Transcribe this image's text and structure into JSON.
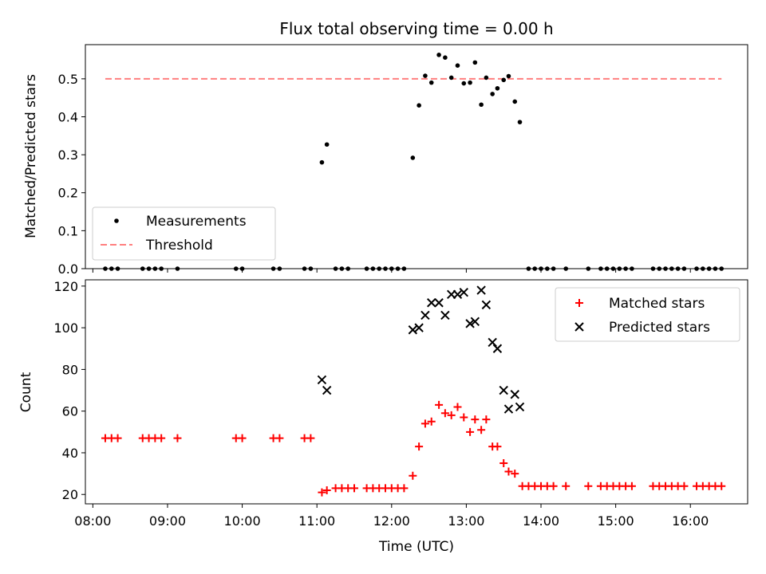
{
  "title": "Flux total observing time = 0.00 h",
  "chart_data": [
    {
      "type": "scatter",
      "title": "Flux total observing time = 0.00 h",
      "xlabel": "",
      "ylabel": "Matched/Predicted stars",
      "xlim": [
        "07:54",
        "16:46"
      ],
      "ylim": [
        0,
        0.59
      ],
      "yticks": [
        "0.0",
        "0.1",
        "0.2",
        "0.3",
        "0.4",
        "0.5"
      ],
      "legend": {
        "placement": "lower-left",
        "entries": [
          "Measurements",
          "Threshold"
        ]
      },
      "series": [
        {
          "name": "Measurements",
          "marker": "dot",
          "color": "#000000",
          "points": [
            [
              "08:10",
              0
            ],
            [
              "08:15",
              0
            ],
            [
              "08:20",
              0
            ],
            [
              "08:40",
              0
            ],
            [
              "08:45",
              0
            ],
            [
              "08:50",
              0
            ],
            [
              "08:55",
              0
            ],
            [
              "09:08",
              0
            ],
            [
              "09:55",
              0
            ],
            [
              "10:00",
              0
            ],
            [
              "10:25",
              0
            ],
            [
              "10:30",
              0
            ],
            [
              "10:50",
              0
            ],
            [
              "10:55",
              0
            ],
            [
              "11:04",
              0.28
            ],
            [
              "11:08",
              0.327
            ],
            [
              "11:15",
              0
            ],
            [
              "11:20",
              0
            ],
            [
              "11:25",
              0
            ],
            [
              "11:40",
              0
            ],
            [
              "11:45",
              0
            ],
            [
              "11:50",
              0
            ],
            [
              "11:55",
              0
            ],
            [
              "12:00",
              0
            ],
            [
              "12:05",
              0
            ],
            [
              "12:10",
              0
            ],
            [
              "12:17",
              0.292
            ],
            [
              "12:22",
              0.43
            ],
            [
              "12:27",
              0.508
            ],
            [
              "12:32",
              0.49
            ],
            [
              "12:38",
              0.563
            ],
            [
              "12:43",
              0.556
            ],
            [
              "12:48",
              0.503
            ],
            [
              "12:53",
              0.535
            ],
            [
              "12:58",
              0.488
            ],
            [
              "13:03",
              0.49
            ],
            [
              "13:07",
              0.543
            ],
            [
              "13:12",
              0.432
            ],
            [
              "13:16",
              0.503
            ],
            [
              "13:21",
              0.46
            ],
            [
              "13:25",
              0.475
            ],
            [
              "13:30",
              0.497
            ],
            [
              "13:34",
              0.507
            ],
            [
              "13:39",
              0.44
            ],
            [
              "13:43",
              0.386
            ],
            [
              "13:50",
              0
            ],
            [
              "13:55",
              0
            ],
            [
              "14:00",
              0
            ],
            [
              "14:05",
              0
            ],
            [
              "14:10",
              0
            ],
            [
              "14:20",
              0
            ],
            [
              "14:38",
              0
            ],
            [
              "14:48",
              0
            ],
            [
              "14:53",
              0
            ],
            [
              "14:58",
              0
            ],
            [
              "15:03",
              0
            ],
            [
              "15:08",
              0
            ],
            [
              "15:13",
              0
            ],
            [
              "15:30",
              0
            ],
            [
              "15:35",
              0
            ],
            [
              "15:40",
              0
            ],
            [
              "15:45",
              0
            ],
            [
              "15:50",
              0
            ],
            [
              "15:55",
              0
            ],
            [
              "16:05",
              0
            ],
            [
              "16:10",
              0
            ],
            [
              "16:15",
              0
            ],
            [
              "16:20",
              0
            ],
            [
              "16:25",
              0
            ]
          ]
        },
        {
          "name": "Threshold",
          "line": "dashed",
          "color": "#ff7f7f",
          "points": [
            [
              "08:10",
              0.5
            ],
            [
              "16:25",
              0.5
            ]
          ]
        }
      ]
    },
    {
      "type": "scatter",
      "title": "",
      "xlabel": "Time (UTC)",
      "ylabel": "Count",
      "xlim": [
        "07:54",
        "16:46"
      ],
      "ylim": [
        15.5,
        123
      ],
      "xticks": [
        "08:00",
        "09:00",
        "10:00",
        "11:00",
        "12:00",
        "13:00",
        "14:00",
        "15:00",
        "16:00"
      ],
      "yticks": [
        "20",
        "40",
        "60",
        "80",
        "100",
        "120"
      ],
      "legend": {
        "placement": "top-right",
        "entries": [
          "Matched stars",
          "Predicted stars"
        ]
      },
      "series": [
        {
          "name": "Matched stars",
          "marker": "plus",
          "color": "#ff0000",
          "points": [
            [
              "08:10",
              47
            ],
            [
              "08:15",
              47
            ],
            [
              "08:20",
              47
            ],
            [
              "08:40",
              47
            ],
            [
              "08:45",
              47
            ],
            [
              "08:50",
              47
            ],
            [
              "08:55",
              47
            ],
            [
              "09:08",
              47
            ],
            [
              "09:55",
              47
            ],
            [
              "10:00",
              47
            ],
            [
              "10:25",
              47
            ],
            [
              "10:30",
              47
            ],
            [
              "10:50",
              47
            ],
            [
              "10:55",
              47
            ],
            [
              "11:04",
              21
            ],
            [
              "11:08",
              22
            ],
            [
              "11:15",
              23
            ],
            [
              "11:20",
              23
            ],
            [
              "11:25",
              23
            ],
            [
              "11:30",
              23
            ],
            [
              "11:40",
              23
            ],
            [
              "11:45",
              23
            ],
            [
              "11:50",
              23
            ],
            [
              "11:55",
              23
            ],
            [
              "12:00",
              23
            ],
            [
              "12:05",
              23
            ],
            [
              "12:10",
              23
            ],
            [
              "12:17",
              29
            ],
            [
              "12:22",
              43
            ],
            [
              "12:27",
              54
            ],
            [
              "12:32",
              55
            ],
            [
              "12:38",
              63
            ],
            [
              "12:43",
              59
            ],
            [
              "12:48",
              58
            ],
            [
              "12:53",
              62
            ],
            [
              "12:58",
              57
            ],
            [
              "13:03",
              50
            ],
            [
              "13:07",
              56
            ],
            [
              "13:12",
              51
            ],
            [
              "13:16",
              56
            ],
            [
              "13:21",
              43
            ],
            [
              "13:25",
              43
            ],
            [
              "13:30",
              35
            ],
            [
              "13:34",
              31
            ],
            [
              "13:39",
              30
            ],
            [
              "13:45",
              24
            ],
            [
              "13:50",
              24
            ],
            [
              "13:55",
              24
            ],
            [
              "14:00",
              24
            ],
            [
              "14:05",
              24
            ],
            [
              "14:10",
              24
            ],
            [
              "14:20",
              24
            ],
            [
              "14:38",
              24
            ],
            [
              "14:48",
              24
            ],
            [
              "14:53",
              24
            ],
            [
              "14:58",
              24
            ],
            [
              "15:03",
              24
            ],
            [
              "15:08",
              24
            ],
            [
              "15:13",
              24
            ],
            [
              "15:30",
              24
            ],
            [
              "15:35",
              24
            ],
            [
              "15:40",
              24
            ],
            [
              "15:45",
              24
            ],
            [
              "15:50",
              24
            ],
            [
              "15:55",
              24
            ],
            [
              "16:05",
              24
            ],
            [
              "16:10",
              24
            ],
            [
              "16:15",
              24
            ],
            [
              "16:20",
              24
            ],
            [
              "16:25",
              24
            ]
          ]
        },
        {
          "name": "Predicted stars",
          "marker": "x",
          "color": "#000000",
          "points": [
            [
              "11:04",
              75
            ],
            [
              "11:08",
              70
            ],
            [
              "12:17",
              99
            ],
            [
              "12:22",
              100
            ],
            [
              "12:27",
              106
            ],
            [
              "12:32",
              112
            ],
            [
              "12:38",
              112
            ],
            [
              "12:43",
              106
            ],
            [
              "12:48",
              116
            ],
            [
              "12:53",
              116
            ],
            [
              "12:58",
              117
            ],
            [
              "13:03",
              102
            ],
            [
              "13:07",
              103
            ],
            [
              "13:12",
              118
            ],
            [
              "13:16",
              111
            ],
            [
              "13:21",
              93
            ],
            [
              "13:25",
              90
            ],
            [
              "13:30",
              70
            ],
            [
              "13:34",
              61
            ],
            [
              "13:39",
              68
            ],
            [
              "13:43",
              62
            ]
          ]
        }
      ]
    }
  ]
}
